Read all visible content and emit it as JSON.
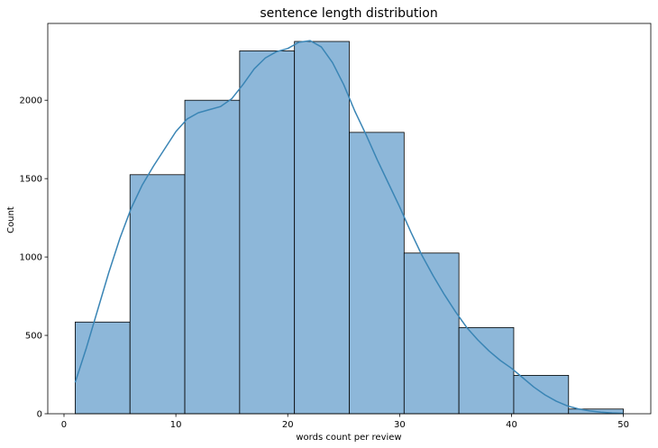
{
  "chart_data": {
    "type": "bar",
    "title": "sentence length distribution",
    "xlabel": "words count per review",
    "ylabel": "Count",
    "xlim": [
      -1.45,
      52.45
    ],
    "ylim": [
      0,
      2490
    ],
    "xticks": [
      0,
      10,
      20,
      30,
      40,
      50
    ],
    "yticks": [
      0,
      500,
      1000,
      1500,
      2000
    ],
    "bins": [
      {
        "x0": 1.0,
        "x1": 5.9,
        "count": 585
      },
      {
        "x0": 5.9,
        "x1": 10.8,
        "count": 1525
      },
      {
        "x0": 10.8,
        "x1": 15.7,
        "count": 2000
      },
      {
        "x0": 15.7,
        "x1": 20.6,
        "count": 2315
      },
      {
        "x0": 20.6,
        "x1": 25.5,
        "count": 2375
      },
      {
        "x0": 25.5,
        "x1": 30.4,
        "count": 1795
      },
      {
        "x0": 30.4,
        "x1": 35.3,
        "count": 1025
      },
      {
        "x0": 35.3,
        "x1": 40.2,
        "count": 550
      },
      {
        "x0": 40.2,
        "x1": 45.1,
        "count": 245
      },
      {
        "x0": 45.1,
        "x1": 50.0,
        "count": 30
      }
    ],
    "kde": {
      "x": [
        1,
        2,
        3,
        4,
        5,
        6,
        7,
        8,
        9,
        10,
        11,
        12,
        13,
        14,
        15,
        16,
        17,
        18,
        19,
        20,
        21,
        22,
        23,
        24,
        25,
        26,
        27,
        28,
        29,
        30,
        31,
        32,
        33,
        34,
        35,
        36,
        37,
        38,
        39,
        40,
        41,
        42,
        43,
        44,
        45,
        46,
        47,
        48,
        49,
        50
      ],
      "y": [
        200,
        420,
        660,
        900,
        1120,
        1310,
        1460,
        1580,
        1690,
        1800,
        1880,
        1920,
        1940,
        1960,
        2010,
        2100,
        2200,
        2270,
        2310,
        2330,
        2370,
        2380,
        2340,
        2240,
        2100,
        1930,
        1780,
        1620,
        1470,
        1320,
        1160,
        1010,
        880,
        760,
        650,
        550,
        470,
        400,
        340,
        290,
        230,
        170,
        120,
        80,
        50,
        30,
        18,
        10,
        5,
        2
      ]
    },
    "grid": false,
    "colors": {
      "bar_fill": "#8db7d9",
      "bar_edge": "#000000",
      "kde_line": "#3a85b5"
    }
  }
}
